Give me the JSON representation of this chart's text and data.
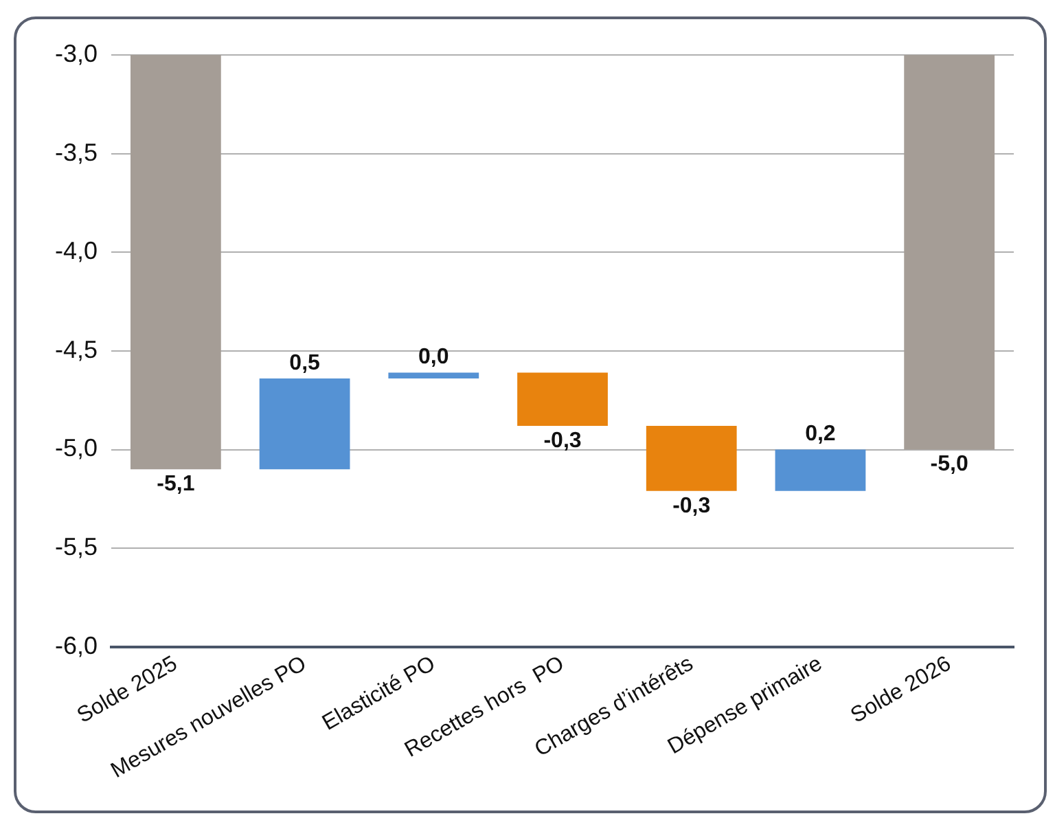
{
  "chart_data": {
    "type": "bar",
    "categories": [
      "Solde 2025",
      "Mesures nouvelles PO",
      "Elasticité PO",
      "Recettes hors  PO",
      "Charges d’intérêts",
      "Dépense primaire",
      "Solde 2026"
    ],
    "values": [
      -5.1,
      0.46,
      0.03,
      -0.27,
      -0.33,
      0.21,
      -5.0
    ],
    "base": [
      null,
      -5.1,
      -4.64,
      -4.61,
      -4.88,
      -5.21,
      null
    ],
    "colors": [
      "#a59d96",
      "#5592d4",
      "#5592d4",
      "#e8830e",
      "#e8830e",
      "#5592d4",
      "#a59d96"
    ],
    "value_labels": [
      "-5,1",
      "0,5",
      "0,0",
      "-0,3",
      "-0,3",
      "0,2",
      "-5,0"
    ],
    "ylim": [
      -6.0,
      -3.0
    ],
    "yticks": [
      {
        "value": -6.0,
        "label": "-6,0"
      },
      {
        "value": -5.5,
        "label": "-5,5"
      },
      {
        "value": -5.0,
        "label": "-5,0"
      },
      {
        "value": -4.5,
        "label": "-4,5"
      },
      {
        "value": -4.0,
        "label": "-4,0"
      },
      {
        "value": -3.5,
        "label": "-3,5"
      },
      {
        "value": -3.0,
        "label": "-3,0"
      }
    ],
    "grid": "y",
    "legend": false
  }
}
